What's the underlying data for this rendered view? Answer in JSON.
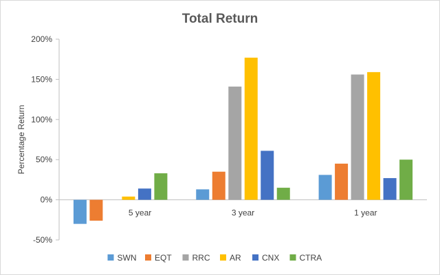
{
  "chart_data": {
    "type": "bar",
    "title": "Total Return",
    "ylabel": "Percentage Return",
    "xlabel": "",
    "categories": [
      "5 year",
      "3 year",
      "1 year"
    ],
    "series": [
      {
        "name": "SWN",
        "color": "#5b9bd5",
        "values": [
          -30,
          13,
          31
        ]
      },
      {
        "name": "EQT",
        "color": "#ed7d31",
        "values": [
          -26,
          35,
          45
        ]
      },
      {
        "name": "RRC",
        "color": "#a5a5a5",
        "values": [
          0,
          141,
          156
        ]
      },
      {
        "name": "AR",
        "color": "#ffc000",
        "values": [
          4,
          177,
          159
        ]
      },
      {
        "name": "CNX",
        "color": "#4472c4",
        "values": [
          14,
          61,
          27
        ]
      },
      {
        "name": "CTRA",
        "color": "#70ad47",
        "values": [
          33,
          15,
          50
        ]
      }
    ],
    "ylim": [
      -50,
      200
    ],
    "yticks": [
      -50,
      0,
      50,
      100,
      150,
      200
    ],
    "ytick_labels": [
      "-50%",
      "0%",
      "50%",
      "100%",
      "150%",
      "200%"
    ],
    "grid": false,
    "legend": "bottom"
  }
}
